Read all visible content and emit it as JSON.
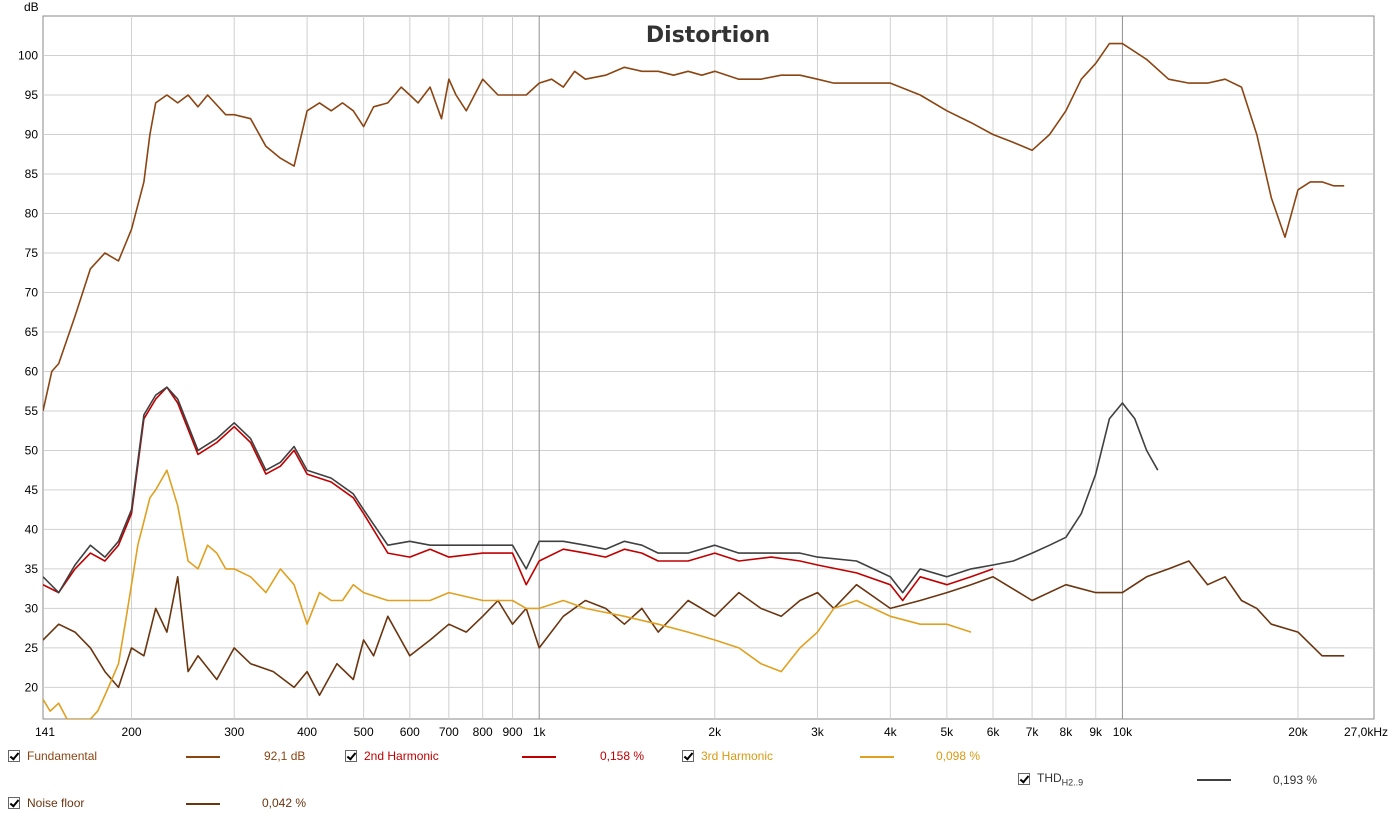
{
  "chart_data": {
    "type": "line",
    "title": "Distortion",
    "ylabel": "dB",
    "xlabel": "",
    "x_scale": "log",
    "xlim": [
      141,
      27000
    ],
    "ylim": [
      16,
      105
    ],
    "grid": true,
    "y_ticks": [
      "20",
      "25",
      "30",
      "35",
      "40",
      "45",
      "50",
      "55",
      "60",
      "65",
      "70",
      "75",
      "80",
      "85",
      "90",
      "95",
      "100"
    ],
    "x_ticks": [
      {
        "v": 141,
        "t": "141"
      },
      {
        "v": 200,
        "t": "200"
      },
      {
        "v": 300,
        "t": "300"
      },
      {
        "v": 400,
        "t": "400"
      },
      {
        "v": 500,
        "t": "500"
      },
      {
        "v": 600,
        "t": "600"
      },
      {
        "v": 700,
        "t": "700"
      },
      {
        "v": 800,
        "t": "800"
      },
      {
        "v": 900,
        "t": "900"
      },
      {
        "v": 1000,
        "t": "1k"
      },
      {
        "v": 2000,
        "t": "2k"
      },
      {
        "v": 3000,
        "t": "3k"
      },
      {
        "v": 4000,
        "t": "4k"
      },
      {
        "v": 5000,
        "t": "5k"
      },
      {
        "v": 6000,
        "t": "6k"
      },
      {
        "v": 7000,
        "t": "7k"
      },
      {
        "v": 8000,
        "t": "8k"
      },
      {
        "v": 9000,
        "t": "9k"
      },
      {
        "v": 10000,
        "t": "10k"
      },
      {
        "v": 20000,
        "t": "20k"
      },
      {
        "v": 27000,
        "t": "27,0kHz"
      }
    ],
    "series": [
      {
        "name": "Fundamental",
        "color": "#8b4513",
        "x": [
          141,
          146,
          150,
          160,
          170,
          180,
          190,
          200,
          210,
          215,
          220,
          230,
          240,
          250,
          260,
          270,
          290,
          300,
          320,
          340,
          360,
          380,
          400,
          420,
          440,
          460,
          480,
          500,
          520,
          550,
          580,
          600,
          620,
          650,
          680,
          700,
          720,
          750,
          800,
          850,
          900,
          950,
          1000,
          1050,
          1100,
          1150,
          1200,
          1300,
          1400,
          1500,
          1600,
          1700,
          1800,
          1900,
          2000,
          2200,
          2400,
          2600,
          2800,
          3000,
          3200,
          3500,
          4000,
          4500,
          5000,
          5500,
          6000,
          6500,
          7000,
          7500,
          8000,
          8500,
          9000,
          9500,
          10000,
          11000,
          12000,
          13000,
          14000,
          15000,
          16000,
          17000,
          18000,
          19000,
          20000,
          21000,
          22000,
          23000,
          24000
        ],
        "y": [
          55,
          60,
          61,
          67,
          73,
          75,
          74,
          78,
          84,
          90,
          94,
          95,
          94,
          95,
          93.5,
          95,
          92.5,
          92.5,
          92,
          88.5,
          87,
          86,
          93,
          94,
          93,
          94,
          93,
          91,
          93.5,
          94,
          96,
          95,
          94,
          96,
          92,
          97,
          95,
          93,
          97,
          95,
          95,
          95,
          96.5,
          97,
          96,
          98,
          97,
          97.5,
          98.5,
          98,
          98,
          97.5,
          98,
          97.5,
          98,
          97,
          97,
          97.5,
          97.5,
          97,
          96.5,
          96.5,
          96.5,
          95,
          93,
          91.5,
          90,
          89,
          88,
          90,
          93,
          97,
          99,
          101.5,
          101.5,
          99.5,
          97,
          96.5,
          96.5,
          97,
          96,
          90,
          82,
          77,
          83,
          84,
          84,
          83.5,
          83.5
        ]
      },
      {
        "name": "2nd Harmonic",
        "color": "#c00000",
        "x": [
          141,
          150,
          160,
          170,
          180,
          190,
          200,
          210,
          220,
          230,
          240,
          260,
          280,
          300,
          320,
          340,
          360,
          380,
          400,
          440,
          480,
          500,
          550,
          600,
          650,
          700,
          800,
          900,
          950,
          1000,
          1100,
          1200,
          1300,
          1400,
          1500,
          1600,
          1800,
          2000,
          2200,
          2500,
          2800,
          3000,
          3500,
          4000,
          4200,
          4500,
          5000,
          5500,
          6000
        ],
        "y": [
          33,
          32,
          35,
          37,
          36,
          38,
          42,
          54,
          56.5,
          58,
          56,
          49.5,
          51,
          53,
          51,
          47,
          48,
          50,
          47,
          46,
          44,
          42,
          37,
          36.5,
          37.5,
          36.5,
          37,
          37,
          33,
          36,
          37.5,
          37,
          36.5,
          37.5,
          37,
          36,
          36,
          37,
          36,
          36.5,
          36,
          35.5,
          34.5,
          33,
          31,
          34,
          33,
          34,
          35
        ]
      },
      {
        "name": "3rd Harmonic",
        "color": "#e0a020",
        "x": [
          141,
          145,
          150,
          155,
          160,
          165,
          170,
          175,
          180,
          185,
          190,
          195,
          200,
          205,
          210,
          215,
          220,
          230,
          240,
          250,
          260,
          270,
          280,
          290,
          300,
          320,
          340,
          360,
          380,
          400,
          420,
          440,
          460,
          480,
          500,
          550,
          600,
          650,
          700,
          800,
          900,
          950,
          1000,
          1100,
          1200,
          1400,
          1600,
          1800,
          2000,
          2200,
          2400,
          2600,
          2800,
          3000,
          3200,
          3500,
          4000,
          4500,
          5000,
          5500
        ],
        "y": [
          18.5,
          17,
          18,
          16,
          16,
          16,
          16,
          17,
          19,
          21,
          23,
          28,
          33,
          38,
          41,
          44,
          45,
          47.5,
          43,
          36,
          35,
          38,
          37,
          35,
          35,
          34,
          32,
          35,
          33,
          28,
          32,
          31,
          31,
          33,
          32,
          31,
          31,
          31,
          32,
          31,
          31,
          30,
          30,
          31,
          30,
          29,
          28,
          27,
          26,
          25,
          23,
          22,
          25,
          27,
          30,
          31,
          29,
          28,
          28,
          27
        ]
      },
      {
        "name": "THD",
        "color": "#404040",
        "x": [
          141,
          150,
          160,
          170,
          180,
          190,
          200,
          210,
          220,
          230,
          240,
          260,
          280,
          300,
          320,
          340,
          360,
          380,
          400,
          440,
          480,
          500,
          550,
          600,
          650,
          700,
          800,
          900,
          950,
          1000,
          1100,
          1200,
          1300,
          1400,
          1500,
          1600,
          1800,
          2000,
          2200,
          2500,
          2800,
          3000,
          3500,
          4000,
          4200,
          4500,
          5000,
          5500,
          6000,
          6500,
          7000,
          7500,
          8000,
          8500,
          9000,
          9500,
          10000,
          10500,
          11000,
          11500
        ],
        "y": [
          34,
          32,
          35.5,
          38,
          36.5,
          38.5,
          42.5,
          54.5,
          57,
          58,
          56.5,
          50,
          51.5,
          53.5,
          51.5,
          47.5,
          48.5,
          50.5,
          47.5,
          46.5,
          44.5,
          42.5,
          38,
          38.5,
          38,
          38,
          38,
          38,
          35,
          38.5,
          38.5,
          38,
          37.5,
          38.5,
          38,
          37,
          37,
          38,
          37,
          37,
          37,
          36.5,
          36,
          34,
          32,
          35,
          34,
          35,
          35.5,
          36,
          37,
          38,
          39,
          42,
          47,
          54,
          56,
          54,
          50,
          47.5
        ]
      },
      {
        "name": "Noise floor",
        "color": "#6b3510",
        "x": [
          141,
          150,
          160,
          170,
          180,
          190,
          200,
          210,
          220,
          230,
          240,
          250,
          260,
          280,
          300,
          320,
          350,
          380,
          400,
          420,
          450,
          480,
          500,
          520,
          550,
          600,
          650,
          700,
          750,
          800,
          850,
          900,
          950,
          1000,
          1100,
          1200,
          1300,
          1400,
          1500,
          1600,
          1800,
          2000,
          2200,
          2400,
          2600,
          2800,
          3000,
          3200,
          3500,
          4000,
          4500,
          5000,
          5500,
          6000,
          7000,
          8000,
          9000,
          10000,
          11000,
          12000,
          13000,
          14000,
          15000,
          16000,
          17000,
          18000,
          20000,
          22000,
          24000
        ],
        "y": [
          26,
          28,
          27,
          25,
          22,
          20,
          25,
          24,
          30,
          27,
          34,
          22,
          24,
          21,
          25,
          23,
          22,
          20,
          22,
          19,
          23,
          21,
          26,
          24,
          29,
          24,
          26,
          28,
          27,
          29,
          31,
          28,
          30,
          25,
          29,
          31,
          30,
          28,
          30,
          27,
          31,
          29,
          32,
          30,
          29,
          31,
          32,
          30,
          33,
          30,
          31,
          32,
          33,
          34,
          31,
          33,
          32,
          32,
          34,
          35,
          36,
          33,
          34,
          31,
          30,
          28,
          27,
          24,
          24
        ]
      }
    ]
  },
  "legend": {
    "fundamental": {
      "label": "Fundamental",
      "value": "92,1 dB",
      "color": "#8b4513"
    },
    "h2": {
      "label": "2nd Harmonic",
      "value": "0,158 %",
      "color": "#c00000"
    },
    "h3": {
      "label": "3rd Harmonic",
      "value": "0,098 %",
      "color": "#e0a020"
    },
    "thd": {
      "label": "THD",
      "sub": "H2..9",
      "value": "0,193 %",
      "color": "#404040"
    },
    "noise": {
      "label": "Noise floor",
      "value": "0,042 %",
      "color": "#6b3510"
    }
  }
}
